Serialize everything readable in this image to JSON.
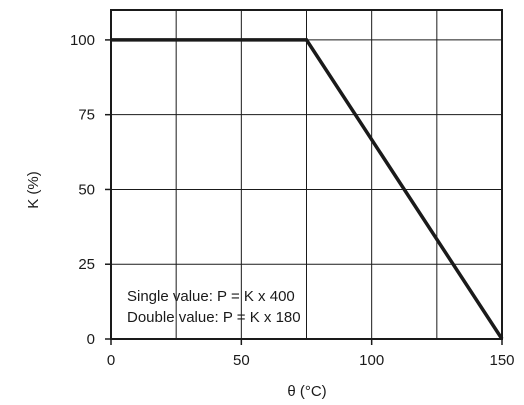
{
  "chart_data": {
    "type": "line",
    "title": "",
    "xlabel": "θ (°C)",
    "ylabel": "K (%)",
    "xlim": [
      0,
      150
    ],
    "ylim": [
      0,
      110
    ],
    "x_ticks": [
      0,
      50,
      100,
      150
    ],
    "y_ticks": [
      0,
      25,
      50,
      75,
      100
    ],
    "x_tick_labels": [
      "0",
      "50",
      "100",
      "150"
    ],
    "y_tick_labels": [
      "0",
      "25",
      "50",
      "75",
      "100"
    ],
    "grid": true,
    "grid_x": [
      0,
      25,
      50,
      75,
      100,
      125,
      150
    ],
    "grid_y": [
      0,
      25,
      50,
      75,
      100
    ],
    "series": [
      {
        "x": [
          0,
          75,
          150
        ],
        "y": [
          100,
          100,
          0
        ]
      }
    ],
    "annotations": [
      "Single value: P = K x 400",
      "Double value: P = K x 180"
    ],
    "colors": {
      "line": "#1a1a1a",
      "grid": "#1a1a1a"
    }
  }
}
